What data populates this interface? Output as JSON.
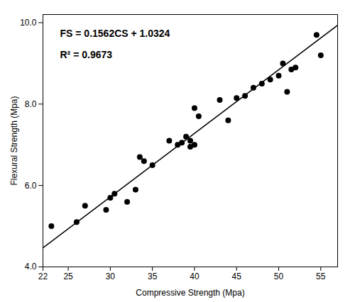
{
  "chart_data": {
    "type": "scatter",
    "xlabel": "Compressive Strength (Mpa)",
    "ylabel": "Flexural Strength (Mpa)",
    "annotations": [
      "FS = 0.1562CS + 1.0324",
      "R² = 0.9673"
    ],
    "xlim": [
      22,
      57
    ],
    "ylim": [
      4,
      10.2
    ],
    "xticks": [
      22,
      25,
      30,
      35,
      40,
      45,
      50,
      55
    ],
    "yticks": [
      4,
      6,
      8,
      10
    ],
    "grid": false,
    "series": [
      {
        "type": "scatter",
        "color": "#000000",
        "x": [
          23,
          26,
          27,
          29.5,
          30,
          30.5,
          32,
          33,
          33.5,
          34,
          35,
          37,
          38,
          38.5,
          39,
          39.5,
          39.5,
          40,
          40,
          40.5,
          43,
          44,
          45,
          46,
          47,
          48,
          49,
          50,
          50.5,
          51,
          51.5,
          52,
          54.5,
          55
        ],
        "values": [
          5.0,
          5.1,
          5.5,
          5.4,
          5.7,
          5.8,
          5.6,
          5.9,
          6.7,
          6.6,
          6.5,
          7.1,
          7.0,
          7.05,
          7.2,
          7.1,
          6.95,
          7.0,
          7.9,
          7.7,
          8.1,
          7.6,
          8.15,
          8.2,
          8.4,
          8.5,
          8.6,
          8.7,
          9.0,
          8.3,
          8.85,
          8.9,
          9.7,
          9.2
        ]
      },
      {
        "type": "line",
        "color": "#000000",
        "x": [
          22,
          57
        ],
        "values": [
          4.4688,
          9.9358
        ]
      }
    ]
  }
}
